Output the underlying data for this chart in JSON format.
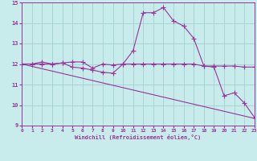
{
  "xlabel": "Windchill (Refroidissement éolien,°C)",
  "background_color": "#c8ecec",
  "grid_color": "#aad4d4",
  "line_color": "#993399",
  "ylim": [
    9,
    15
  ],
  "xlim": [
    0,
    23
  ],
  "yticks": [
    9,
    10,
    11,
    12,
    13,
    14,
    15
  ],
  "xticks": [
    0,
    1,
    2,
    3,
    4,
    5,
    6,
    7,
    8,
    9,
    10,
    11,
    12,
    13,
    14,
    15,
    16,
    17,
    18,
    19,
    20,
    21,
    22,
    23
  ],
  "line1_x": [
    0,
    1,
    2,
    3,
    4,
    5,
    6,
    7,
    8,
    9,
    10,
    11,
    12,
    13,
    14,
    15,
    16,
    17,
    18,
    19,
    20,
    21,
    22,
    23
  ],
  "line1_y": [
    12.0,
    12.0,
    12.1,
    12.0,
    12.05,
    11.85,
    11.8,
    11.7,
    11.6,
    11.55,
    12.0,
    12.65,
    14.5,
    14.5,
    14.75,
    14.1,
    13.85,
    13.25,
    11.9,
    11.85,
    10.45,
    10.6,
    10.1,
    9.4
  ],
  "line2_x": [
    0,
    1,
    2,
    3,
    4,
    5,
    6,
    7,
    8,
    9,
    10,
    11,
    12,
    13,
    14,
    15,
    16,
    17,
    18,
    19,
    20,
    21,
    22,
    23
  ],
  "line2_y": [
    12.0,
    12.0,
    12.0,
    12.0,
    12.05,
    12.1,
    12.1,
    11.8,
    12.0,
    11.95,
    12.0,
    12.0,
    12.0,
    12.0,
    12.0,
    12.0,
    12.0,
    12.0,
    11.9,
    11.9,
    11.9,
    11.9,
    11.85,
    11.85
  ],
  "line3_x": [
    0,
    23
  ],
  "line3_y": [
    12.0,
    9.35
  ]
}
